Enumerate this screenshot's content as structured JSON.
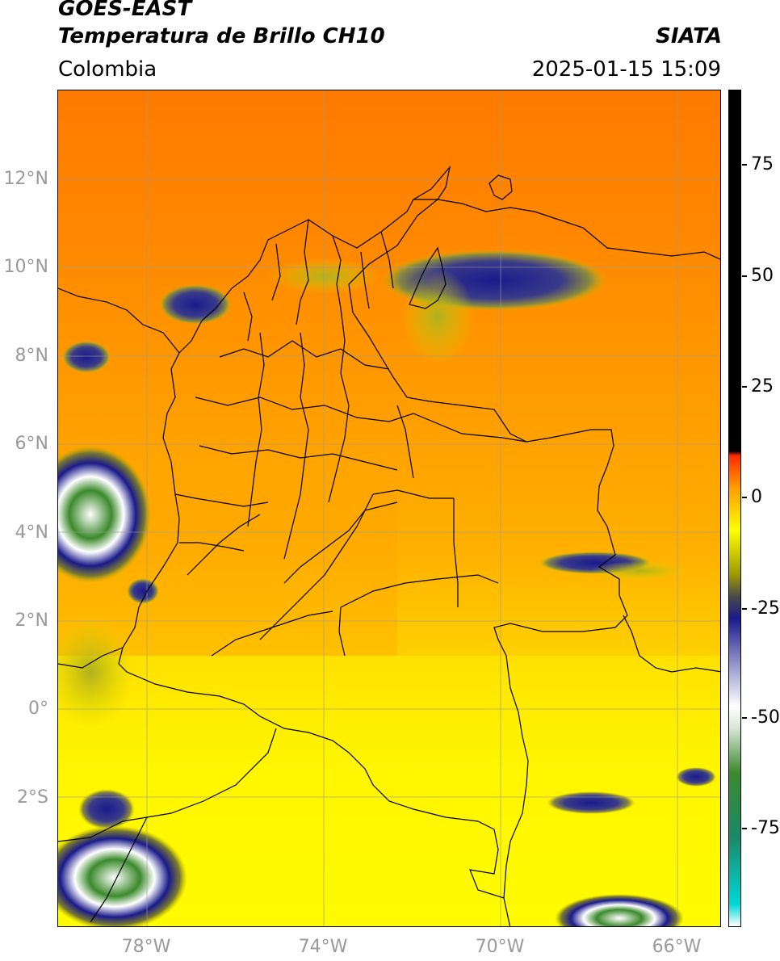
{
  "header": {
    "title_line1": "GOES-EAST",
    "title_line2": "Temperatura de Brillo CH10",
    "org": "SIATA",
    "region": "Colombia",
    "timestamp": "2025-01-15 15:09"
  },
  "map": {
    "lat_labels": [
      "12°N",
      "10°N",
      "8°N",
      "6°N",
      "4°N",
      "2°N",
      "0°",
      "2°S"
    ],
    "lon_labels": [
      "78°W",
      "74°W",
      "70°W",
      "66°W"
    ],
    "colors": {
      "warm_orange": "#ff8a00",
      "orange": "#ff9c00",
      "yellow": "#ffee00",
      "olive": "#b8b400",
      "navy": "#1c1a8c",
      "white": "#ffffff",
      "green": "#3a8a3a",
      "border": "#000000",
      "grid": "#9a9a9a"
    }
  },
  "colorbar": {
    "tick_labels": [
      "75",
      "50",
      "25",
      "0",
      "-25",
      "-50",
      "-75"
    ],
    "stops": [
      {
        "value": -100,
        "color": "#ffffff"
      },
      {
        "value": -95,
        "color": "#00d8d8"
      },
      {
        "value": -80,
        "color": "#1a8a6a"
      },
      {
        "value": -65,
        "color": "#3b8a2c"
      },
      {
        "value": -55,
        "color": "#d8e6d8"
      },
      {
        "value": -50,
        "color": "#ffffff"
      },
      {
        "value": -40,
        "color": "#9090c8"
      },
      {
        "value": -30,
        "color": "#1a1a8c"
      },
      {
        "value": -25,
        "color": "#4a4a4a"
      },
      {
        "value": -20,
        "color": "#a09a00"
      },
      {
        "value": -10,
        "color": "#ffff00"
      },
      {
        "value": 0,
        "color": "#ff9900"
      },
      {
        "value": 7,
        "color": "#ff2a00"
      },
      {
        "value": 8,
        "color": "#000000"
      },
      {
        "value": 90,
        "color": "#000000"
      }
    ]
  }
}
